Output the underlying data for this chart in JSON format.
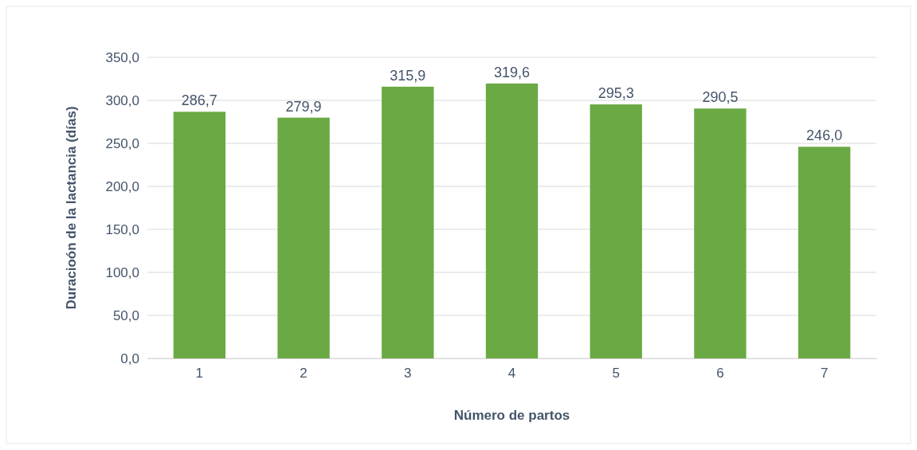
{
  "chart_data": {
    "type": "bar",
    "xlabel": "Número de partos",
    "ylabel": "Duracioón de la lactancia (días)",
    "categories": [
      "1",
      "2",
      "3",
      "4",
      "5",
      "6",
      "7"
    ],
    "values": [
      286.7,
      279.9,
      315.9,
      319.6,
      295.3,
      290.5,
      246.0
    ],
    "value_labels": [
      "286,7",
      "279,9",
      "315,9",
      "319,6",
      "295,3",
      "290,5",
      "246,0"
    ],
    "color": "#6aa943",
    "ylim": [
      0,
      350
    ],
    "yticks": [
      {
        "value": 0,
        "label": "0,0"
      },
      {
        "value": 50,
        "label": "50,0"
      },
      {
        "value": 100,
        "label": "100,0"
      },
      {
        "value": 150,
        "label": "150,0"
      },
      {
        "value": 200,
        "label": "200,0"
      },
      {
        "value": 250,
        "label": "250,0"
      },
      {
        "value": 300,
        "label": "300,0"
      },
      {
        "value": 350,
        "label": "350,0"
      }
    ],
    "grid": "y"
  }
}
